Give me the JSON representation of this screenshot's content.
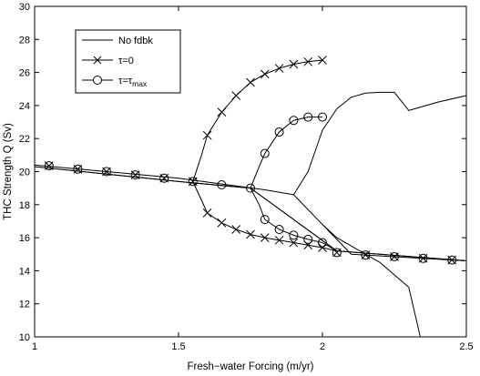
{
  "chart_data": {
    "type": "line",
    "xlabel": "Fresh−water Forcing (m/yr)",
    "ylabel": "THC Strength Q (Sv)",
    "xlim": [
      1,
      2.5
    ],
    "ylim": [
      10,
      30
    ],
    "xticks": [
      1,
      1.5,
      2,
      2.5
    ],
    "xtick_labels": [
      "1",
      "1.5",
      "2",
      "2.5"
    ],
    "yticks": [
      10,
      12,
      14,
      16,
      18,
      20,
      22,
      24,
      26,
      28,
      30
    ],
    "ytick_labels": [
      "10",
      "12",
      "14",
      "16",
      "18",
      "20",
      "22",
      "24",
      "26",
      "28",
      "30"
    ],
    "grid": false,
    "legend": {
      "location": "top-left",
      "entries": [
        {
          "label": "No fdbk",
          "marker": "none"
        },
        {
          "label": "τ=0",
          "marker": "x"
        },
        {
          "label_base": "τ=τ",
          "label_sub": "max",
          "marker": "circle"
        }
      ]
    },
    "series": [
      {
        "label_ref": 0,
        "marker": "none",
        "paths": [
          [
            [
              1.0,
              20.4
            ],
            [
              1.5,
              19.6
            ],
            [
              1.8,
              18.9
            ],
            [
              1.9,
              18.6
            ],
            [
              2.0,
              16.8
            ],
            [
              2.1,
              15.0
            ],
            [
              2.5,
              14.6
            ]
          ],
          [
            [
              1.9,
              18.6
            ],
            [
              1.95,
              20.0
            ],
            [
              2.0,
              22.5
            ],
            [
              2.05,
              23.8
            ],
            [
              2.1,
              24.5
            ],
            [
              2.15,
              24.75
            ],
            [
              2.2,
              24.8
            ],
            [
              2.25,
              24.8
            ],
            [
              2.3,
              23.7
            ],
            [
              2.4,
              24.2
            ],
            [
              2.5,
              24.6
            ]
          ],
          [
            [
              2.0,
              16.8
            ],
            [
              2.05,
              16.0
            ],
            [
              2.1,
              15.5
            ],
            [
              2.15,
              15.0
            ],
            [
              2.2,
              14.5
            ],
            [
              2.3,
              13.0
            ],
            [
              2.32,
              11.5
            ],
            [
              2.34,
              10.0
            ]
          ]
        ]
      },
      {
        "label_ref": 1,
        "marker": "x",
        "paths": [
          [
            [
              1.0,
              20.3
            ],
            [
              1.5,
              19.4
            ],
            [
              1.75,
              19.0
            ],
            [
              2.05,
              15.2
            ],
            [
              2.5,
              14.6
            ]
          ],
          [
            [
              1.55,
              19.4
            ],
            [
              1.58,
              21.0
            ],
            [
              1.6,
              22.2
            ],
            [
              1.65,
              23.6
            ],
            [
              1.7,
              24.6
            ],
            [
              1.75,
              25.4
            ],
            [
              1.8,
              25.9
            ],
            [
              1.85,
              26.25
            ],
            [
              1.9,
              26.5
            ],
            [
              1.95,
              26.65
            ],
            [
              2.0,
              26.75
            ]
          ],
          [
            [
              1.55,
              19.4
            ],
            [
              1.6,
              17.5
            ],
            [
              1.65,
              16.9
            ],
            [
              1.7,
              16.5
            ],
            [
              1.75,
              16.2
            ],
            [
              1.8,
              16.0
            ],
            [
              1.85,
              15.85
            ],
            [
              1.9,
              15.7
            ],
            [
              1.95,
              15.55
            ],
            [
              2.0,
              15.4
            ],
            [
              2.05,
              15.2
            ]
          ]
        ],
        "markers": [
          [
            1.05,
            20.35
          ],
          [
            1.15,
            20.15
          ],
          [
            1.25,
            20.0
          ],
          [
            1.35,
            19.8
          ],
          [
            1.45,
            19.6
          ],
          [
            1.55,
            19.4
          ],
          [
            1.6,
            22.2
          ],
          [
            1.65,
            23.6
          ],
          [
            1.7,
            24.6
          ],
          [
            1.75,
            25.4
          ],
          [
            1.8,
            25.9
          ],
          [
            1.85,
            26.25
          ],
          [
            1.9,
            26.5
          ],
          [
            1.95,
            26.65
          ],
          [
            2.0,
            26.75
          ],
          [
            1.6,
            17.5
          ],
          [
            1.65,
            16.9
          ],
          [
            1.7,
            16.5
          ],
          [
            1.75,
            16.2
          ],
          [
            1.8,
            16.0
          ],
          [
            1.85,
            15.85
          ],
          [
            1.9,
            15.7
          ],
          [
            1.95,
            15.55
          ],
          [
            2.0,
            15.4
          ],
          [
            2.05,
            15.1
          ],
          [
            2.15,
            14.95
          ],
          [
            2.25,
            14.85
          ],
          [
            2.35,
            14.75
          ],
          [
            2.45,
            14.65
          ]
        ]
      },
      {
        "label_ref": 2,
        "marker": "circle",
        "paths": [
          [
            [
              1.0,
              20.3
            ],
            [
              1.5,
              19.4
            ],
            [
              1.75,
              19.0
            ],
            [
              2.05,
              15.2
            ],
            [
              2.5,
              14.6
            ]
          ],
          [
            [
              1.75,
              19.0
            ],
            [
              1.78,
              20.3
            ],
            [
              1.8,
              21.1
            ],
            [
              1.85,
              22.4
            ],
            [
              1.9,
              23.1
            ],
            [
              1.95,
              23.3
            ],
            [
              2.0,
              23.3
            ]
          ],
          [
            [
              1.75,
              19.0
            ],
            [
              1.78,
              18.0
            ],
            [
              1.8,
              17.1
            ],
            [
              1.85,
              16.5
            ],
            [
              1.9,
              16.15
            ],
            [
              1.95,
              15.9
            ],
            [
              2.0,
              15.7
            ],
            [
              2.05,
              15.2
            ]
          ]
        ],
        "markers": [
          [
            1.05,
            20.35
          ],
          [
            1.15,
            20.15
          ],
          [
            1.25,
            20.0
          ],
          [
            1.35,
            19.8
          ],
          [
            1.45,
            19.6
          ],
          [
            1.55,
            19.4
          ],
          [
            1.65,
            19.2
          ],
          [
            1.75,
            19.0
          ],
          [
            1.8,
            21.1
          ],
          [
            1.85,
            22.4
          ],
          [
            1.9,
            23.1
          ],
          [
            1.95,
            23.3
          ],
          [
            2.0,
            23.3
          ],
          [
            1.8,
            17.1
          ],
          [
            1.85,
            16.5
          ],
          [
            1.9,
            16.15
          ],
          [
            1.95,
            15.9
          ],
          [
            2.0,
            15.7
          ],
          [
            2.05,
            15.1
          ],
          [
            2.15,
            14.95
          ],
          [
            2.25,
            14.85
          ],
          [
            2.35,
            14.75
          ],
          [
            2.45,
            14.65
          ]
        ]
      }
    ]
  }
}
